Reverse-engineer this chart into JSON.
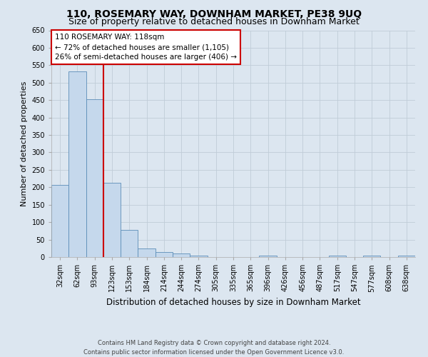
{
  "title": "110, ROSEMARY WAY, DOWNHAM MARKET, PE38 9UQ",
  "subtitle": "Size of property relative to detached houses in Downham Market",
  "xlabel": "Distribution of detached houses by size in Downham Market",
  "ylabel": "Number of detached properties",
  "footer_line1": "Contains HM Land Registry data © Crown copyright and database right 2024.",
  "footer_line2": "Contains public sector information licensed under the Open Government Licence v3.0.",
  "bin_labels": [
    "32sqm",
    "62sqm",
    "93sqm",
    "123sqm",
    "153sqm",
    "184sqm",
    "214sqm",
    "244sqm",
    "274sqm",
    "305sqm",
    "335sqm",
    "365sqm",
    "396sqm",
    "426sqm",
    "456sqm",
    "487sqm",
    "517sqm",
    "547sqm",
    "577sqm",
    "608sqm",
    "638sqm"
  ],
  "bar_values": [
    207,
    533,
    452,
    213,
    77,
    24,
    14,
    10,
    5,
    0,
    0,
    0,
    5,
    0,
    0,
    0,
    5,
    0,
    5,
    0,
    5
  ],
  "bar_color": "#c5d8ec",
  "bar_edge_color": "#5b8db8",
  "vline_color": "#cc0000",
  "vline_pos": 2.5,
  "annotation_line1": "110 ROSEMARY WAY: 118sqm",
  "annotation_line2": "← 72% of detached houses are smaller (1,105)",
  "annotation_line3": "26% of semi-detached houses are larger (406) →",
  "annotation_box_color": "#ffffff",
  "annotation_box_edge_color": "#cc0000",
  "ylim": [
    0,
    650
  ],
  "yticks": [
    0,
    50,
    100,
    150,
    200,
    250,
    300,
    350,
    400,
    450,
    500,
    550,
    600,
    650
  ],
  "grid_color": "#c0ccd8",
  "background_color": "#dce6f0",
  "title_fontsize": 10,
  "subtitle_fontsize": 9,
  "ylabel_fontsize": 8,
  "xlabel_fontsize": 8.5,
  "tick_fontsize": 7,
  "annotation_fontsize": 7.5,
  "footer_fontsize": 6
}
